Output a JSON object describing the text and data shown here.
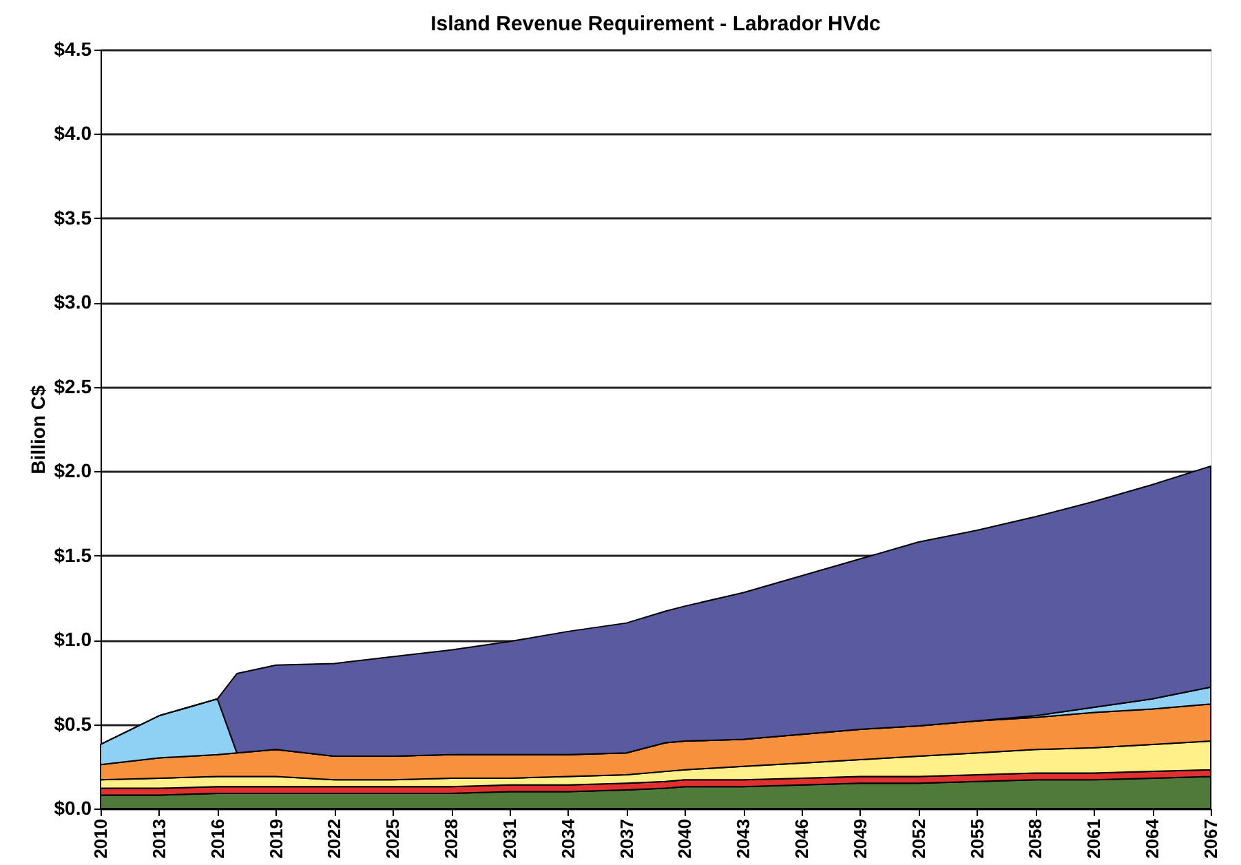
{
  "chart_data": {
    "type": "area",
    "stacked": true,
    "title": "Island Revenue Requirement - Labrador HVdc",
    "ylabel": "Billion C$",
    "x": [
      2010,
      2013,
      2016,
      2017,
      2019,
      2022,
      2025,
      2028,
      2031,
      2034,
      2037,
      2039,
      2040,
      2043,
      2046,
      2049,
      2052,
      2055,
      2058,
      2061,
      2064,
      2067
    ],
    "series": [
      {
        "color": "#4f7a3a",
        "values": [
          0.08,
          0.08,
          0.09,
          0.09,
          0.09,
          0.09,
          0.09,
          0.09,
          0.1,
          0.1,
          0.11,
          0.12,
          0.13,
          0.13,
          0.14,
          0.15,
          0.15,
          0.16,
          0.17,
          0.17,
          0.18,
          0.19
        ]
      },
      {
        "color": "#e03030",
        "values": [
          0.04,
          0.04,
          0.04,
          0.04,
          0.04,
          0.04,
          0.04,
          0.04,
          0.04,
          0.04,
          0.04,
          0.04,
          0.04,
          0.04,
          0.04,
          0.04,
          0.04,
          0.04,
          0.04,
          0.04,
          0.04,
          0.04
        ]
      },
      {
        "color": "#fff08a",
        "values": [
          0.05,
          0.06,
          0.06,
          0.06,
          0.06,
          0.04,
          0.04,
          0.05,
          0.04,
          0.05,
          0.05,
          0.06,
          0.06,
          0.08,
          0.09,
          0.1,
          0.12,
          0.13,
          0.14,
          0.15,
          0.16,
          0.17
        ]
      },
      {
        "color": "#f7913d",
        "values": [
          0.09,
          0.12,
          0.13,
          0.14,
          0.16,
          0.14,
          0.14,
          0.14,
          0.14,
          0.13,
          0.13,
          0.17,
          0.17,
          0.16,
          0.17,
          0.18,
          0.18,
          0.19,
          0.19,
          0.21,
          0.21,
          0.22
        ]
      },
      {
        "color": "#8fd0f5",
        "values": [
          0.12,
          0.25,
          0.33,
          0,
          0,
          0,
          0,
          0,
          0,
          0,
          0,
          0,
          0,
          0,
          0,
          0,
          0,
          0,
          0.01,
          0.03,
          0.06,
          0.1
        ]
      },
      {
        "color": "#5a5aa0",
        "values": [
          0,
          0,
          0,
          0.47,
          0.5,
          0.55,
          0.59,
          0.62,
          0.67,
          0.73,
          0.77,
          0.78,
          0.8,
          0.87,
          0.94,
          1.01,
          1.09,
          1.13,
          1.18,
          1.22,
          1.27,
          1.31
        ]
      }
    ],
    "xlim": [
      2010,
      2067
    ],
    "xticks": [
      2010,
      2013,
      2016,
      2019,
      2022,
      2025,
      2028,
      2031,
      2034,
      2037,
      2040,
      2043,
      2046,
      2049,
      2052,
      2055,
      2058,
      2061,
      2064,
      2067
    ],
    "ylim": [
      0,
      4.5
    ],
    "yticks": [
      {
        "value": 0,
        "label": "$0.0"
      },
      {
        "value": 0.5,
        "label": "$0.5"
      },
      {
        "value": 1,
        "label": "$1.0"
      },
      {
        "value": 1.5,
        "label": "$1.5"
      },
      {
        "value": 2,
        "label": "$2.0"
      },
      {
        "value": 2.5,
        "label": "$2.5"
      },
      {
        "value": 3,
        "label": "$3.0"
      },
      {
        "value": 3.5,
        "label": "$3.5"
      },
      {
        "value": 4,
        "label": "$4.0"
      },
      {
        "value": 4.5,
        "label": "$4.5"
      }
    ],
    "grid": "y",
    "legend": false
  }
}
